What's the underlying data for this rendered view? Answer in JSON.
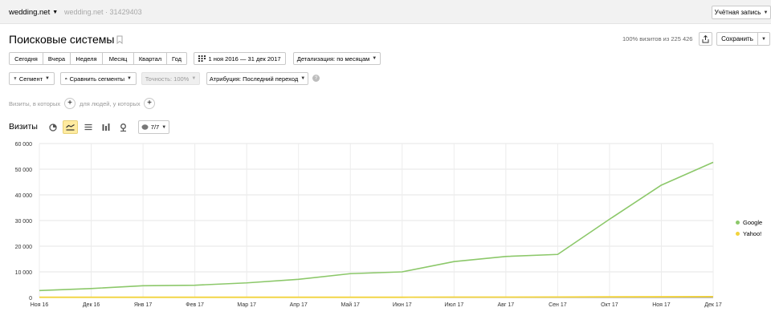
{
  "topbar": {
    "site_name": "wedding.net",
    "counter_name": "wedding.net",
    "counter_id": "31429403",
    "account_label": "Учётная запись"
  },
  "header": {
    "title": "Поисковые системы",
    "visits_info": "100% визитов из 225 426",
    "save_label": "Сохранить"
  },
  "period_buttons": [
    "Сегодня",
    "Вчера",
    "Неделя",
    "Месяц",
    "Квартал",
    "Год"
  ],
  "date_range": "1 ноя 2016 — 31 дек 2017",
  "detail_label": "Детализация: по месяцам",
  "segment_label": "Сегмент",
  "compare_label": "Сравнить сегменты",
  "accuracy_label": "Точность: 100%",
  "attribution_label": "Атрибуция: Последний переход",
  "filters": {
    "visits_label": "Визиты, в которых",
    "people_label": "для людей, у которых"
  },
  "chart_section": {
    "title": "Визиты",
    "series_toggle": "7/7"
  },
  "colors": {
    "google": "#8cc86a",
    "yahoo": "#f2d33c",
    "accent": "#ffeba0"
  },
  "chart_data": {
    "type": "line",
    "categories": [
      "Ноя 16",
      "Дек 16",
      "Янв 17",
      "Фев 17",
      "Мар 17",
      "Апр 17",
      "Май 17",
      "Июн 17",
      "Июл 17",
      "Авг 17",
      "Сен 17",
      "Окт 17",
      "Ноя 17",
      "Дек 17"
    ],
    "series": [
      {
        "name": "Google",
        "values": [
          2700,
          3500,
          4600,
          4800,
          5700,
          7100,
          9300,
          10000,
          14000,
          16000,
          16800,
          30500,
          43800,
          52700
        ]
      },
      {
        "name": "Yahoo!",
        "values": [
          100,
          100,
          100,
          100,
          100,
          100,
          100,
          100,
          150,
          150,
          200,
          250,
          300,
          350
        ]
      }
    ],
    "y_ticks": [
      "0",
      "10 000",
      "20 000",
      "30 000",
      "40 000",
      "50 000",
      "60 000"
    ],
    "ylim": [
      0,
      60000
    ],
    "grid": true,
    "legend_position": "right"
  }
}
